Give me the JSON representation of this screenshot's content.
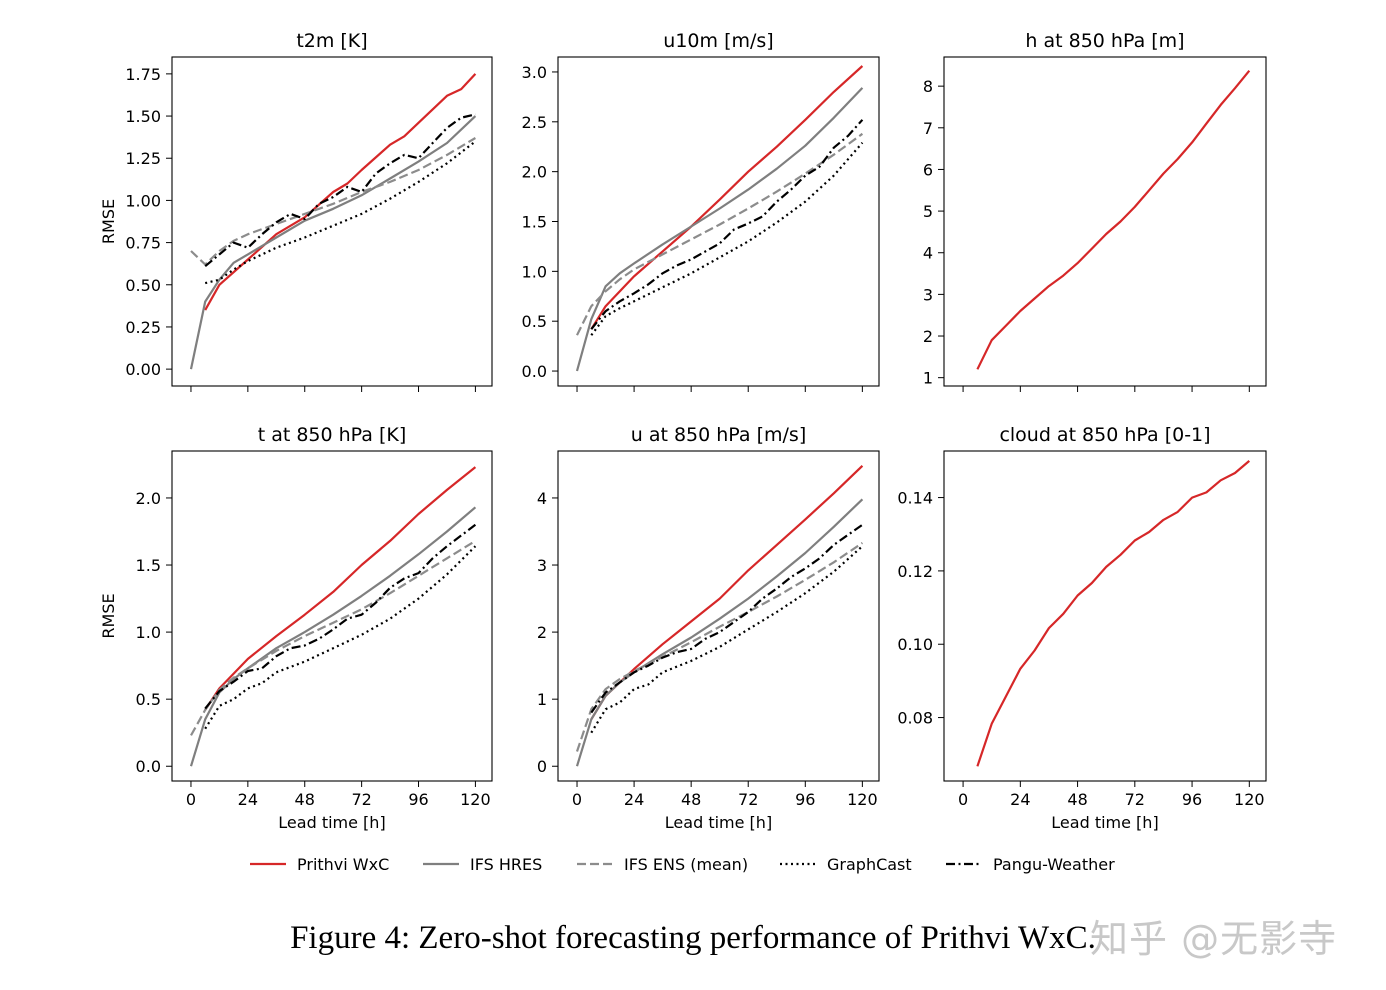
{
  "caption": "Figure 4: Zero-shot forecasting performance of Prithvi WxC.",
  "watermark": "知乎 @无影寺",
  "legend": [
    {
      "name": "Prithvi WxC",
      "color": "#d62728",
      "dash": "solid"
    },
    {
      "name": "IFS HRES",
      "color": "#7f7f7f",
      "dash": "solid"
    },
    {
      "name": "IFS ENS (mean)",
      "color": "#8c8c8c",
      "dash": "dashed"
    },
    {
      "name": "GraphCast",
      "color": "#000000",
      "dash": "dotted"
    },
    {
      "name": "Pangu-Weather",
      "color": "#000000",
      "dash": "dashdot"
    }
  ],
  "chart_data": [
    {
      "type": "line",
      "title": "t2m [K]",
      "xlabel": "",
      "ylabel": "RMSE",
      "xlim": [
        -8,
        127
      ],
      "ylim": [
        -0.1,
        1.85
      ],
      "xticks": [
        0,
        24,
        48,
        72,
        96,
        120
      ],
      "show_xticklabels": false,
      "yticks": [
        0.0,
        0.25,
        0.5,
        0.75,
        1.0,
        1.25,
        1.5,
        1.75
      ],
      "ytick_decimals": 2,
      "series": [
        {
          "name": "Prithvi WxC",
          "x": [
            6,
            12,
            24,
            36,
            48,
            60,
            66,
            72,
            84,
            90,
            96,
            108,
            114,
            120
          ],
          "values": [
            0.35,
            0.5,
            0.65,
            0.8,
            0.9,
            1.05,
            1.1,
            1.18,
            1.33,
            1.38,
            1.46,
            1.62,
            1.66,
            1.75
          ]
        },
        {
          "name": "IFS HRES",
          "x": [
            0,
            6,
            12,
            18,
            24,
            36,
            48,
            60,
            72,
            84,
            96,
            108,
            120
          ],
          "values": [
            0.0,
            0.4,
            0.53,
            0.63,
            0.68,
            0.78,
            0.88,
            0.95,
            1.03,
            1.13,
            1.23,
            1.34,
            1.5
          ]
        },
        {
          "name": "IFS ENS (mean)",
          "x": [
            0,
            6,
            12,
            18,
            24,
            36,
            48,
            60,
            72,
            84,
            96,
            108,
            120
          ],
          "values": [
            0.7,
            0.62,
            0.7,
            0.76,
            0.8,
            0.86,
            0.92,
            0.98,
            1.05,
            1.11,
            1.18,
            1.27,
            1.37
          ]
        },
        {
          "name": "GraphCast",
          "x": [
            6,
            12,
            18,
            24,
            36,
            48,
            60,
            72,
            84,
            96,
            108,
            120
          ],
          "values": [
            0.51,
            0.53,
            0.59,
            0.64,
            0.72,
            0.78,
            0.85,
            0.92,
            1.01,
            1.11,
            1.22,
            1.35
          ]
        },
        {
          "name": "Pangu-Weather",
          "x": [
            6,
            12,
            18,
            24,
            30,
            36,
            42,
            48,
            54,
            60,
            66,
            72,
            78,
            84,
            90,
            96,
            102,
            108,
            114,
            120
          ],
          "values": [
            0.61,
            0.68,
            0.75,
            0.72,
            0.8,
            0.87,
            0.92,
            0.89,
            0.98,
            1.02,
            1.08,
            1.05,
            1.16,
            1.22,
            1.27,
            1.25,
            1.34,
            1.43,
            1.49,
            1.51
          ]
        }
      ]
    },
    {
      "type": "line",
      "title": "u10m [m/s]",
      "xlabel": "",
      "ylabel": "",
      "xlim": [
        -8,
        127
      ],
      "ylim": [
        -0.15,
        3.15
      ],
      "xticks": [
        0,
        24,
        48,
        72,
        96,
        120
      ],
      "show_xticklabels": false,
      "yticks": [
        0.0,
        0.5,
        1.0,
        1.5,
        2.0,
        2.5,
        3.0
      ],
      "ytick_decimals": 1,
      "series": [
        {
          "name": "Prithvi WxC",
          "x": [
            6,
            12,
            24,
            36,
            48,
            60,
            72,
            84,
            96,
            108,
            120
          ],
          "values": [
            0.42,
            0.65,
            0.95,
            1.2,
            1.45,
            1.72,
            2.0,
            2.25,
            2.52,
            2.8,
            3.06
          ]
        },
        {
          "name": "IFS HRES",
          "x": [
            0,
            6,
            12,
            18,
            24,
            36,
            48,
            60,
            72,
            84,
            96,
            108,
            120
          ],
          "values": [
            0.0,
            0.52,
            0.85,
            0.98,
            1.08,
            1.27,
            1.45,
            1.63,
            1.82,
            2.03,
            2.26,
            2.54,
            2.84
          ]
        },
        {
          "name": "IFS ENS (mean)",
          "x": [
            0,
            6,
            12,
            18,
            24,
            36,
            48,
            60,
            72,
            84,
            96,
            108,
            120
          ],
          "values": [
            0.36,
            0.65,
            0.8,
            0.92,
            1.02,
            1.17,
            1.32,
            1.47,
            1.63,
            1.8,
            1.98,
            2.17,
            2.38
          ]
        },
        {
          "name": "GraphCast",
          "x": [
            6,
            12,
            18,
            24,
            36,
            48,
            60,
            72,
            84,
            96,
            108,
            120
          ],
          "values": [
            0.36,
            0.55,
            0.63,
            0.7,
            0.84,
            0.98,
            1.14,
            1.3,
            1.49,
            1.7,
            1.96,
            2.29
          ]
        },
        {
          "name": "Pangu-Weather",
          "x": [
            6,
            12,
            18,
            24,
            30,
            36,
            42,
            48,
            54,
            60,
            66,
            72,
            78,
            84,
            90,
            96,
            102,
            108,
            114,
            120
          ],
          "values": [
            0.42,
            0.6,
            0.7,
            0.78,
            0.87,
            0.98,
            1.06,
            1.12,
            1.2,
            1.28,
            1.42,
            1.48,
            1.55,
            1.7,
            1.82,
            1.96,
            2.05,
            2.24,
            2.36,
            2.52
          ]
        }
      ]
    },
    {
      "type": "line",
      "title": "h at 850 hPa [m]",
      "xlabel": "",
      "ylabel": "",
      "xlim": [
        -8,
        127
      ],
      "ylim": [
        0.8,
        8.7
      ],
      "xticks": [
        0,
        24,
        48,
        72,
        96,
        120
      ],
      "show_xticklabels": false,
      "yticks": [
        1,
        2,
        3,
        4,
        5,
        6,
        7,
        8
      ],
      "ytick_decimals": 0,
      "series": [
        {
          "name": "Prithvi WxC",
          "x": [
            6,
            12,
            18,
            24,
            30,
            36,
            42,
            48,
            54,
            60,
            66,
            72,
            78,
            84,
            90,
            96,
            102,
            108,
            114,
            120
          ],
          "values": [
            1.2,
            1.9,
            2.25,
            2.6,
            2.9,
            3.2,
            3.45,
            3.75,
            4.1,
            4.45,
            4.75,
            5.1,
            5.5,
            5.9,
            6.25,
            6.65,
            7.1,
            7.55,
            7.95,
            8.37
          ]
        }
      ]
    },
    {
      "type": "line",
      "title": "t at 850 hPa [K]",
      "xlabel": "Lead time [h]",
      "ylabel": "RMSE",
      "xlim": [
        -8,
        127
      ],
      "ylim": [
        -0.11,
        2.35
      ],
      "xticks": [
        0,
        24,
        48,
        72,
        96,
        120
      ],
      "show_xticklabels": true,
      "yticks": [
        0.0,
        0.5,
        1.0,
        1.5,
        2.0
      ],
      "ytick_decimals": 1,
      "series": [
        {
          "name": "Prithvi WxC",
          "x": [
            6,
            12,
            24,
            36,
            48,
            60,
            72,
            84,
            96,
            108,
            120
          ],
          "values": [
            0.42,
            0.58,
            0.8,
            0.97,
            1.13,
            1.3,
            1.5,
            1.68,
            1.88,
            2.06,
            2.23
          ]
        },
        {
          "name": "IFS HRES",
          "x": [
            0,
            6,
            12,
            18,
            24,
            36,
            48,
            60,
            72,
            84,
            96,
            108,
            120
          ],
          "values": [
            0.0,
            0.35,
            0.55,
            0.65,
            0.73,
            0.88,
            1.0,
            1.13,
            1.27,
            1.42,
            1.58,
            1.75,
            1.93
          ]
        },
        {
          "name": "IFS ENS (mean)",
          "x": [
            0,
            6,
            12,
            18,
            24,
            36,
            48,
            60,
            72,
            84,
            96,
            108,
            120
          ],
          "values": [
            0.23,
            0.42,
            0.57,
            0.66,
            0.73,
            0.86,
            0.97,
            1.07,
            1.17,
            1.29,
            1.42,
            1.55,
            1.68
          ]
        },
        {
          "name": "GraphCast",
          "x": [
            6,
            12,
            18,
            24,
            30,
            36,
            48,
            60,
            72,
            84,
            96,
            108,
            120
          ],
          "values": [
            0.28,
            0.45,
            0.5,
            0.58,
            0.62,
            0.7,
            0.78,
            0.88,
            0.98,
            1.1,
            1.25,
            1.43,
            1.64
          ]
        },
        {
          "name": "Pangu-Weather",
          "x": [
            6,
            12,
            18,
            24,
            30,
            36,
            42,
            48,
            54,
            60,
            66,
            72,
            78,
            84,
            90,
            96,
            102,
            108,
            114,
            120
          ],
          "values": [
            0.43,
            0.56,
            0.63,
            0.71,
            0.73,
            0.82,
            0.88,
            0.9,
            0.95,
            1.02,
            1.1,
            1.13,
            1.22,
            1.33,
            1.4,
            1.44,
            1.55,
            1.64,
            1.72,
            1.8
          ]
        }
      ]
    },
    {
      "type": "line",
      "title": "u at 850 hPa [m/s]",
      "xlabel": "Lead time [h]",
      "ylabel": "",
      "xlim": [
        -8,
        127
      ],
      "ylim": [
        -0.22,
        4.7
      ],
      "xticks": [
        0,
        24,
        48,
        72,
        96,
        120
      ],
      "show_xticklabels": true,
      "yticks": [
        0,
        1,
        2,
        3,
        4
      ],
      "ytick_decimals": 0,
      "series": [
        {
          "name": "Prithvi WxC",
          "x": [
            6,
            12,
            24,
            36,
            48,
            60,
            72,
            84,
            96,
            108,
            120
          ],
          "values": [
            0.7,
            1.05,
            1.45,
            1.82,
            2.16,
            2.5,
            2.92,
            3.3,
            3.68,
            4.07,
            4.48
          ]
        },
        {
          "name": "IFS HRES",
          "x": [
            0,
            6,
            12,
            18,
            24,
            36,
            48,
            60,
            72,
            84,
            96,
            108,
            120
          ],
          "values": [
            0.0,
            0.7,
            1.05,
            1.25,
            1.4,
            1.67,
            1.92,
            2.2,
            2.5,
            2.83,
            3.18,
            3.57,
            3.98
          ]
        },
        {
          "name": "IFS ENS (mean)",
          "x": [
            0,
            6,
            12,
            18,
            24,
            36,
            48,
            60,
            72,
            84,
            96,
            108,
            120
          ],
          "values": [
            0.22,
            0.85,
            1.15,
            1.3,
            1.42,
            1.63,
            1.85,
            2.08,
            2.3,
            2.53,
            2.78,
            3.04,
            3.33
          ]
        },
        {
          "name": "GraphCast",
          "x": [
            6,
            12,
            18,
            24,
            30,
            36,
            48,
            60,
            72,
            84,
            96,
            108,
            120
          ],
          "values": [
            0.5,
            0.85,
            0.95,
            1.15,
            1.22,
            1.4,
            1.57,
            1.78,
            2.04,
            2.3,
            2.58,
            2.9,
            3.28
          ]
        },
        {
          "name": "Pangu-Weather",
          "x": [
            6,
            12,
            18,
            24,
            30,
            36,
            42,
            48,
            54,
            60,
            66,
            72,
            78,
            84,
            90,
            96,
            102,
            108,
            114,
            120
          ],
          "values": [
            0.8,
            1.1,
            1.25,
            1.4,
            1.5,
            1.62,
            1.7,
            1.75,
            1.9,
            2.0,
            2.15,
            2.3,
            2.5,
            2.65,
            2.82,
            2.95,
            3.1,
            3.3,
            3.45,
            3.6
          ]
        }
      ]
    },
    {
      "type": "line",
      "title": "cloud at 850 hPa [0-1]",
      "xlabel": "Lead time [h]",
      "ylabel": "",
      "xlim": [
        -8,
        127
      ],
      "ylim": [
        0.0627,
        0.1527
      ],
      "xticks": [
        0,
        24,
        48,
        72,
        96,
        120
      ],
      "show_xticklabels": true,
      "yticks": [
        0.08,
        0.1,
        0.12,
        0.14
      ],
      "ytick_decimals": 2,
      "series": [
        {
          "name": "Prithvi WxC",
          "x": [
            6,
            12,
            18,
            24,
            30,
            36,
            42,
            48,
            54,
            60,
            66,
            72,
            78,
            84,
            90,
            96,
            102,
            108,
            114,
            120
          ],
          "values": [
            0.0667,
            0.0783,
            0.0858,
            0.0933,
            0.0983,
            0.1044,
            0.1083,
            0.1133,
            0.1167,
            0.1211,
            0.1244,
            0.1283,
            0.1306,
            0.1339,
            0.1361,
            0.14,
            0.1414,
            0.1447,
            0.1467,
            0.15
          ]
        }
      ]
    }
  ]
}
